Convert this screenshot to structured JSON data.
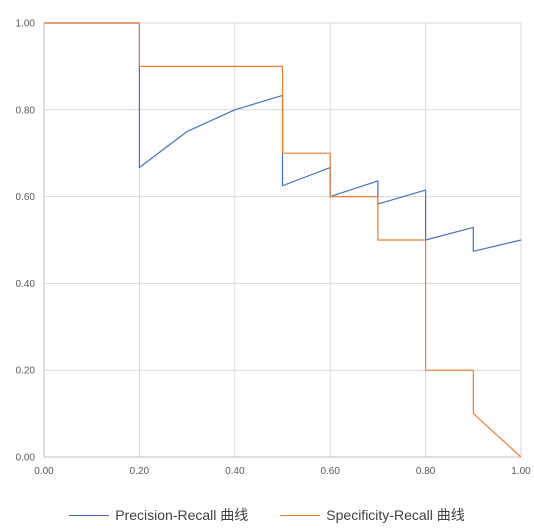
{
  "chart_data": {
    "type": "line",
    "xlim": [
      0,
      1
    ],
    "ylim": [
      0,
      1
    ],
    "x_ticks": [
      "0.00",
      "0.20",
      "0.40",
      "0.60",
      "0.80",
      "1.00"
    ],
    "y_ticks": [
      "0.00",
      "0.20",
      "0.40",
      "0.60",
      "0.80",
      "1.00"
    ],
    "grid": true,
    "legend_position": "bottom",
    "series": [
      {
        "name": "Precision-Recall 曲线",
        "color": "#4472C4",
        "points": [
          [
            0,
            1
          ],
          [
            0.2,
            1
          ],
          [
            0.2,
            0.667
          ],
          [
            0.3,
            0.75
          ],
          [
            0.4,
            0.8
          ],
          [
            0.5,
            0.833
          ],
          [
            0.5,
            0.625
          ],
          [
            0.6,
            0.667
          ],
          [
            0.6,
            0.6
          ],
          [
            0.7,
            0.636
          ],
          [
            0.7,
            0.583
          ],
          [
            0.8,
            0.615
          ],
          [
            0.8,
            0.5
          ],
          [
            0.9,
            0.529
          ],
          [
            0.9,
            0.474
          ],
          [
            1,
            0.5
          ]
        ]
      },
      {
        "name": "Specificity-Recall 曲线",
        "color": "#ED7D31",
        "points": [
          [
            0,
            1
          ],
          [
            0.2,
            1
          ],
          [
            0.2,
            0.9
          ],
          [
            0.5,
            0.9
          ],
          [
            0.5,
            0.7
          ],
          [
            0.6,
            0.7
          ],
          [
            0.6,
            0.6
          ],
          [
            0.7,
            0.6
          ],
          [
            0.7,
            0.5
          ],
          [
            0.8,
            0.5
          ],
          [
            0.8,
            0.2
          ],
          [
            0.9,
            0.2
          ],
          [
            0.9,
            0.1
          ],
          [
            1,
            0
          ]
        ]
      }
    ]
  }
}
